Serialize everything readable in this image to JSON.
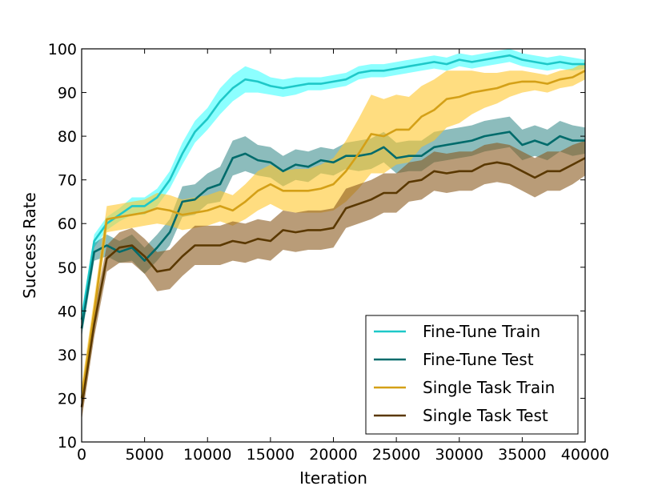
{
  "chart_data": {
    "type": "line",
    "title": "",
    "xlabel": "Iteration",
    "ylabel": "Success Rate",
    "xlim": [
      0,
      40000
    ],
    "ylim": [
      10,
      100
    ],
    "xticks": [
      0,
      5000,
      10000,
      15000,
      20000,
      25000,
      30000,
      35000,
      40000
    ],
    "yticks": [
      10,
      20,
      30,
      40,
      50,
      60,
      70,
      80,
      90,
      100
    ],
    "grid": false,
    "legend_position": "bottom-right",
    "x": [
      0,
      1000,
      2000,
      3000,
      4000,
      5000,
      6000,
      7000,
      8000,
      9000,
      10000,
      11000,
      12000,
      13000,
      14000,
      15000,
      16000,
      17000,
      18000,
      19000,
      20000,
      21000,
      22000,
      23000,
      24000,
      25000,
      26000,
      27000,
      28000,
      29000,
      30000,
      31000,
      32000,
      33000,
      34000,
      35000,
      36000,
      37000,
      38000,
      39000,
      40000
    ],
    "series": [
      {
        "name": "Fine-Tune Train",
        "color": "#1ec8c8",
        "band_color": "#00ffff",
        "band_opacity": 0.45,
        "values": [
          38,
          56,
          60,
          62,
          64,
          64,
          66,
          70,
          76,
          81,
          84,
          88,
          91,
          93,
          92.5,
          91.5,
          91,
          91.5,
          92,
          92,
          92.5,
          93,
          94.5,
          95,
          95,
          95.5,
          96,
          96.5,
          97,
          96.5,
          97.5,
          97,
          97.5,
          98,
          98.5,
          97.5,
          97,
          96.5,
          97,
          96.5,
          96.5
        ],
        "spread": [
          2,
          1.5,
          1.5,
          1.5,
          2,
          2,
          2,
          2,
          2.5,
          2.5,
          2.5,
          3,
          3,
          3,
          2.5,
          2,
          2,
          2,
          1.5,
          1.5,
          1.5,
          1.5,
          1.5,
          1.5,
          1.5,
          1.5,
          1.5,
          1.5,
          1.5,
          1.5,
          1.5,
          1.5,
          1.5,
          1.5,
          1.5,
          1.5,
          1.5,
          1.5,
          1.5,
          1.5,
          1
        ]
      },
      {
        "name": "Fine-Tune Test",
        "color": "#006b6b",
        "band_color": "#006b6b",
        "band_opacity": 0.45,
        "values": [
          36,
          53.5,
          55,
          53.5,
          54.5,
          51.5,
          54.5,
          58,
          65,
          65.5,
          68,
          69,
          75,
          76,
          74.5,
          74,
          72,
          73.5,
          73,
          74.5,
          74,
          75.5,
          75.5,
          76,
          77.5,
          75,
          75.5,
          75.5,
          77.5,
          78,
          78.5,
          79,
          80,
          80.5,
          81,
          78,
          79,
          78,
          80,
          79,
          79
        ],
        "spread": [
          2,
          2,
          2.5,
          2.5,
          3,
          3,
          3,
          3,
          3.5,
          3.5,
          3.5,
          4,
          4,
          4,
          3.5,
          3.5,
          3.5,
          3.5,
          3.5,
          3,
          3,
          3,
          3.5,
          3.5,
          3.5,
          3.5,
          3.5,
          3.5,
          3.5,
          3.5,
          3.5,
          3.5,
          3.5,
          3.5,
          3.5,
          3.5,
          3.5,
          3.5,
          3.5,
          3.5,
          3
        ]
      },
      {
        "name": "Single Task Train",
        "color": "#d4a017",
        "band_color": "#ffc72c",
        "band_opacity": 0.6,
        "values": [
          20,
          40,
          61,
          61.5,
          62,
          62.5,
          63.5,
          63,
          62,
          62.5,
          63,
          64,
          63,
          65,
          67.5,
          69,
          67.5,
          67.5,
          67.5,
          68,
          69,
          72,
          76,
          80.5,
          80,
          81.5,
          81.5,
          84.5,
          86,
          88.5,
          89,
          90,
          90.5,
          91,
          92,
          92.5,
          92.5,
          92,
          93,
          93.5,
          95
        ],
        "spread": [
          3,
          3,
          3,
          3,
          3,
          3,
          3.5,
          3.5,
          3.5,
          3.5,
          3.5,
          3.5,
          3.5,
          4,
          4.5,
          4.5,
          4.5,
          5,
          5,
          5.5,
          6,
          7,
          8,
          9,
          8.5,
          8,
          7.5,
          7,
          7,
          6.5,
          6,
          5,
          4,
          3.5,
          3,
          2.5,
          2,
          2,
          2,
          2,
          2
        ]
      },
      {
        "name": "Single Task Test",
        "color": "#5a3800",
        "band_color": "#8b5a1e",
        "band_opacity": 0.6,
        "values": [
          18,
          37,
          52,
          54.5,
          55,
          52.5,
          49,
          49.5,
          52.5,
          55,
          55,
          55,
          56,
          55.5,
          56.5,
          56,
          58.5,
          58,
          58.5,
          58.5,
          59,
          63.5,
          64.5,
          65.5,
          67,
          67,
          69.5,
          70,
          72,
          71.5,
          72,
          72,
          73.5,
          74,
          73.5,
          72,
          70.5,
          72,
          72,
          73.5,
          75
        ],
        "spread": [
          3,
          3,
          3,
          3.5,
          4,
          4,
          4.5,
          4.5,
          4.5,
          4.5,
          4.5,
          4.5,
          4.5,
          4.5,
          4.5,
          4.5,
          4.5,
          4.5,
          4.5,
          4.5,
          4.5,
          4.5,
          4.5,
          4.5,
          4.5,
          4.5,
          4.5,
          4.5,
          4.5,
          4.5,
          4.5,
          4.5,
          4.5,
          4.5,
          4.5,
          4.5,
          4.5,
          4.5,
          4.5,
          4.5,
          4
        ]
      }
    ]
  }
}
